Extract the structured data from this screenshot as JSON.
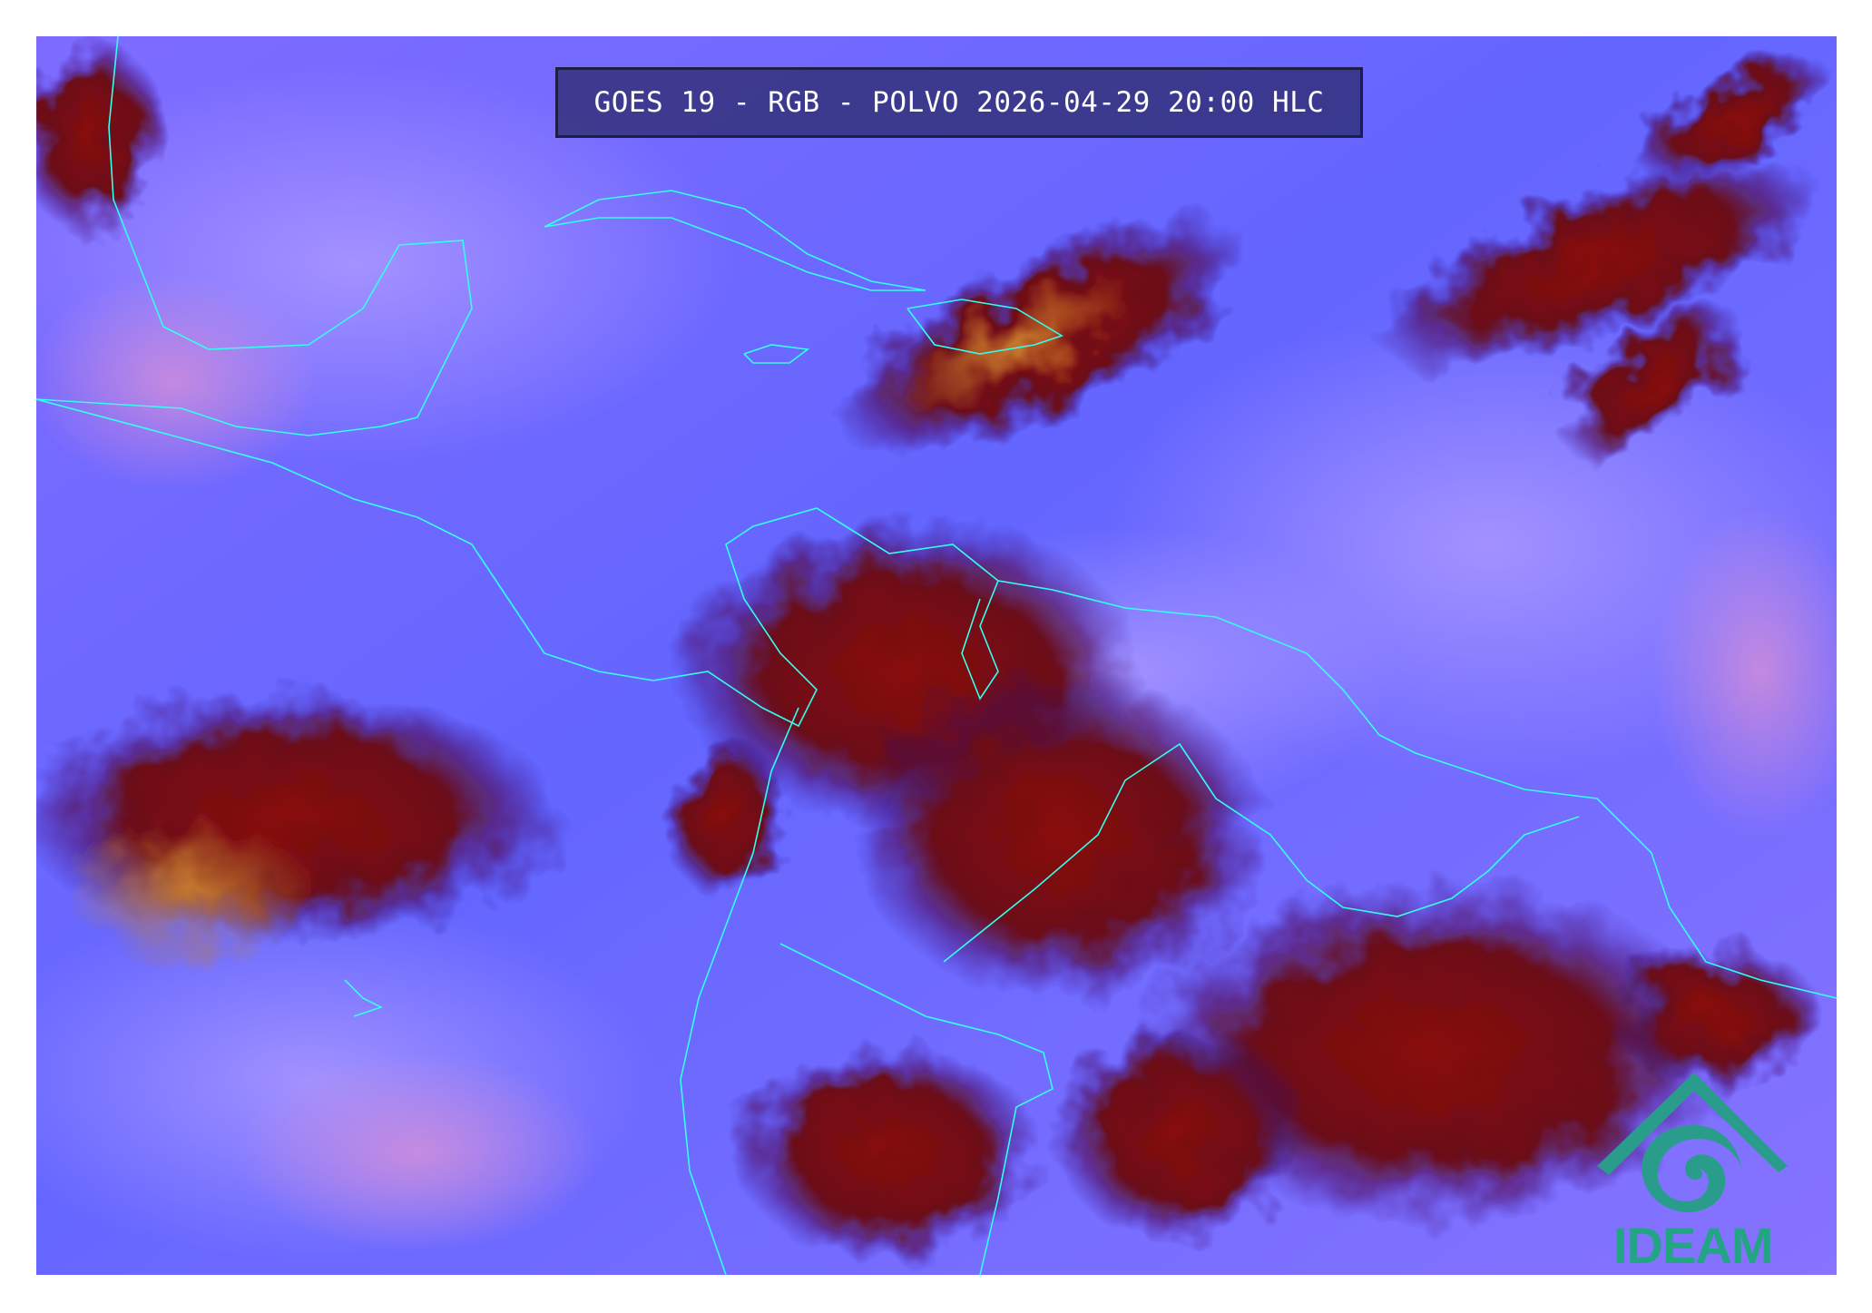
{
  "header": {
    "title": "GOES 19 - RGB - POLVO 2026-04-29 20:00 HLC"
  },
  "map": {
    "product": "RGB dust (POLVO) satellite composite",
    "colors": {
      "background_clear": "#6a6aff",
      "haze": "#9a7fff",
      "dust_pink": "#c98ad8",
      "deep_cloud_red": "#8b0a0a",
      "cloud_dark": "#1a0840",
      "cloud_orange": "#c4782e",
      "coastline": "#33ffee"
    }
  },
  "logo": {
    "text": "IDEAM",
    "color": "#23a485",
    "icon": "ideam-roof-spiral-logo-icon"
  }
}
